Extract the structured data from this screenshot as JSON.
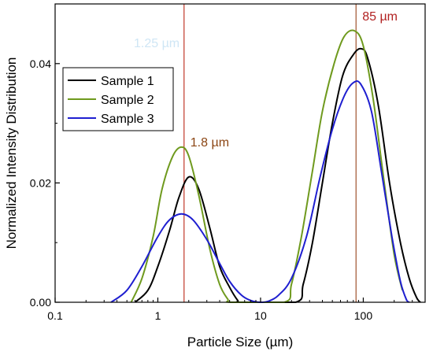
{
  "chart_data": {
    "type": "line",
    "title": "",
    "xlabel": "Particle Size (µm)",
    "ylabel": "Normalized Intensity Distribution",
    "xscale": "log",
    "xlim": [
      0.1,
      400
    ],
    "ylim": [
      0,
      0.05
    ],
    "x_ticks": [
      {
        "value": 0.1,
        "label": "0.1"
      },
      {
        "value": 1,
        "label": "1"
      },
      {
        "value": 10,
        "label": "10"
      },
      {
        "value": 100,
        "label": "100"
      }
    ],
    "y_ticks": [
      {
        "value": 0,
        "label": "0.00"
      },
      {
        "value": 0.02,
        "label": "0.02"
      },
      {
        "value": 0.04,
        "label": "0.04"
      }
    ],
    "grid": false,
    "legend": {
      "position": "top-left"
    },
    "series": [
      {
        "name": "Sample 1",
        "color": "#000000",
        "points": [
          [
            0.6,
            0
          ],
          [
            0.8,
            0.002
          ],
          [
            1.0,
            0.006
          ],
          [
            1.3,
            0.012
          ],
          [
            1.6,
            0.0175
          ],
          [
            2.0,
            0.021
          ],
          [
            2.5,
            0.019
          ],
          [
            3.2,
            0.0125
          ],
          [
            4.0,
            0.006
          ],
          [
            5.0,
            0.0025
          ],
          [
            6.0,
            0.0003
          ],
          [
            6.5,
            0
          ],
          [
            22,
            0
          ],
          [
            26,
            0.003
          ],
          [
            32,
            0.01
          ],
          [
            40,
            0.02
          ],
          [
            50,
            0.03
          ],
          [
            63,
            0.038
          ],
          [
            80,
            0.0415
          ],
          [
            95,
            0.0425
          ],
          [
            110,
            0.041
          ],
          [
            140,
            0.033
          ],
          [
            180,
            0.02
          ],
          [
            230,
            0.01
          ],
          [
            280,
            0.004
          ],
          [
            330,
            0.0008
          ],
          [
            360,
            0
          ]
        ]
      },
      {
        "name": "Sample 2",
        "color": "#6f9a1e",
        "points": [
          [
            0.55,
            0
          ],
          [
            0.7,
            0.004
          ],
          [
            0.9,
            0.011
          ],
          [
            1.1,
            0.019
          ],
          [
            1.4,
            0.0245
          ],
          [
            1.7,
            0.026
          ],
          [
            2.0,
            0.0245
          ],
          [
            2.5,
            0.018
          ],
          [
            3.2,
            0.009
          ],
          [
            4.0,
            0.003
          ],
          [
            4.8,
            0.0005
          ],
          [
            5.2,
            0
          ],
          [
            17,
            0
          ],
          [
            20,
            0.003
          ],
          [
            25,
            0.011
          ],
          [
            32,
            0.022
          ],
          [
            40,
            0.032
          ],
          [
            52,
            0.04
          ],
          [
            65,
            0.0445
          ],
          [
            82,
            0.0455
          ],
          [
            100,
            0.043
          ],
          [
            125,
            0.034
          ],
          [
            160,
            0.02
          ],
          [
            200,
            0.008
          ],
          [
            240,
            0.002
          ]
        ]
      },
      {
        "name": "Sample 3",
        "color": "#1f1fd0",
        "points": [
          [
            0.35,
            0
          ],
          [
            0.5,
            0.002
          ],
          [
            0.7,
            0.006
          ],
          [
            1.0,
            0.011
          ],
          [
            1.3,
            0.0138
          ],
          [
            1.7,
            0.0148
          ],
          [
            2.2,
            0.0138
          ],
          [
            3.0,
            0.0105
          ],
          [
            4.0,
            0.0065
          ],
          [
            5.0,
            0.0035
          ],
          [
            6.5,
            0.0012
          ],
          [
            8,
            0.0003
          ],
          [
            10,
            0
          ],
          [
            12,
            0.0002
          ],
          [
            15,
            0.0012
          ],
          [
            20,
            0.004
          ],
          [
            28,
            0.011
          ],
          [
            38,
            0.021
          ],
          [
            50,
            0.029
          ],
          [
            65,
            0.0345
          ],
          [
            80,
            0.0368
          ],
          [
            95,
            0.0365
          ],
          [
            120,
            0.032
          ],
          [
            150,
            0.022
          ],
          [
            190,
            0.011
          ],
          [
            230,
            0.0035
          ],
          [
            265,
            0.0003
          ],
          [
            280,
            0
          ]
        ]
      }
    ],
    "reference_lines": [
      {
        "x": 1.8,
        "color": "#c0392b",
        "label": "1.8 µm",
        "label_color": "#8b4513"
      },
      {
        "x": 85,
        "color": "#a0522d",
        "label": "85 µm",
        "label_color": "#b22222"
      }
    ],
    "faded_label": {
      "text": "1.25 µm",
      "color": "#cfe6f5"
    }
  }
}
